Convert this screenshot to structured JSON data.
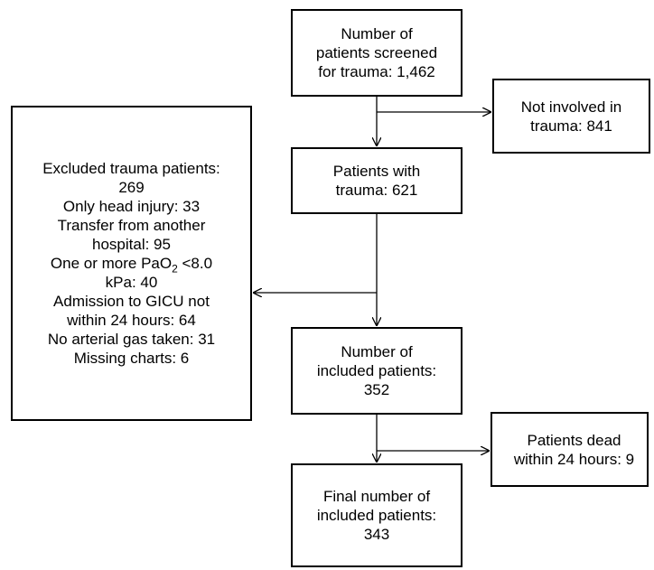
{
  "boxes": {
    "screened": [
      "Number of",
      "patients screened",
      "for trauma: 1,462"
    ],
    "not_involved": [
      "Not involved in",
      "trauma: 841"
    ],
    "excluded": {
      "line1": "Excluded trauma patients:",
      "line2": "269",
      "line3": "Only head injury: 33",
      "line4": "Transfer from another",
      "line5": "hospital: 95",
      "line6_prefix": "One or more PaO",
      "line6_sub": "2",
      "line6_suffix": " <8.0",
      "line7": "kPa: 40",
      "line8": "Admission to GICU not",
      "line9": "within 24 hours: 64",
      "line10": "No arterial gas taken: 31",
      "line11": "Missing charts: 6"
    },
    "trauma": [
      "Patients with",
      "trauma: 621"
    ],
    "included": [
      "Number of",
      "included patients:",
      "352"
    ],
    "dead": [
      "Patients dead",
      "within 24 hours: 9"
    ],
    "final": [
      "Final number of",
      "included patients:",
      "343"
    ]
  }
}
